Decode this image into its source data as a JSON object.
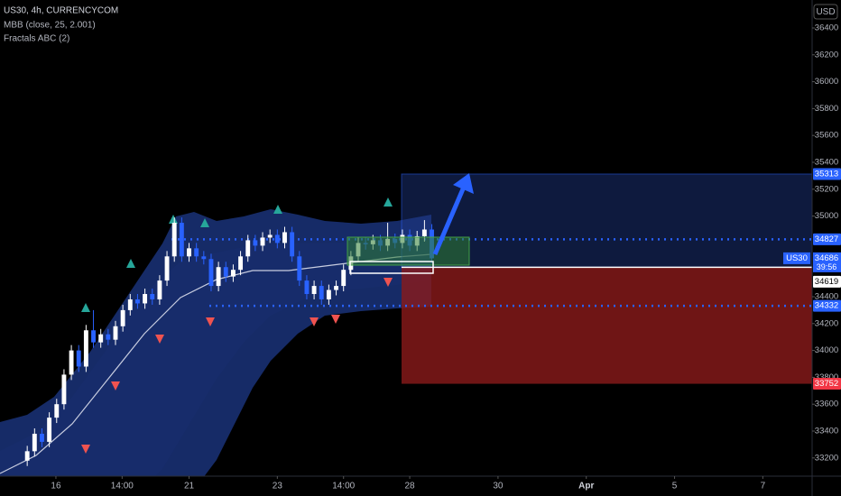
{
  "chart_data": {
    "type": "candlestick",
    "title": "US30, 4h, CURRENCYCOM",
    "indicators": [
      "MBB (close, 25, 2.001)",
      "Fractals ABC (2)"
    ],
    "currency": "USD",
    "x": [
      0,
      1,
      2,
      3,
      4,
      5,
      6,
      7,
      8,
      9,
      10,
      11,
      12,
      13,
      14,
      15,
      16,
      17,
      18,
      19,
      20,
      21,
      22,
      23,
      24,
      25,
      26,
      27,
      28,
      29,
      30,
      31,
      32,
      33,
      34,
      35,
      36,
      37,
      38,
      39,
      40,
      41,
      42,
      43,
      44,
      45,
      46,
      47,
      48,
      49,
      50,
      51,
      52,
      53,
      54,
      55
    ],
    "open": [
      33180,
      33250,
      33380,
      33320,
      33500,
      33600,
      33820,
      34000,
      33880,
      34150,
      34060,
      34120,
      34080,
      34180,
      34300,
      34380,
      34350,
      34420,
      34380,
      34520,
      34700,
      34950,
      34700,
      34760,
      34700,
      34680,
      34480,
      34620,
      34550,
      34600,
      34700,
      34820,
      34780,
      34840,
      34860,
      34800,
      34880,
      34700,
      34520,
      34420,
      34480,
      34380,
      34450,
      34480,
      34600,
      34700,
      34800,
      34790,
      34820,
      34780,
      34830,
      34800,
      34860,
      34780,
      34850,
      34900
    ],
    "high": [
      33290,
      33420,
      33420,
      33540,
      33640,
      33860,
      34040,
      34040,
      34190,
      34300,
      34160,
      34160,
      34220,
      34340,
      34420,
      34420,
      34460,
      34460,
      34560,
      34740,
      34990,
      34990,
      34800,
      34800,
      34740,
      34720,
      34660,
      34660,
      34640,
      34740,
      34860,
      34860,
      34880,
      34900,
      34900,
      34920,
      34920,
      34740,
      34560,
      34520,
      34520,
      34490,
      34520,
      34640,
      34740,
      34840,
      34840,
      34860,
      34860,
      34950,
      34870,
      34900,
      34900,
      34890,
      34970,
      34940
    ],
    "low": [
      33140,
      33210,
      33280,
      33280,
      33460,
      33560,
      33780,
      33840,
      33840,
      34020,
      34020,
      34040,
      34040,
      34140,
      34260,
      34310,
      34310,
      34340,
      34340,
      34480,
      34660,
      34660,
      34660,
      34660,
      34640,
      34440,
      34440,
      34510,
      34510,
      34560,
      34660,
      34740,
      34740,
      34800,
      34760,
      34760,
      34660,
      34480,
      34380,
      34380,
      34340,
      34340,
      34410,
      34440,
      34560,
      34660,
      34750,
      34750,
      34740,
      34740,
      34760,
      34760,
      34740,
      34740,
      34810,
      34646
    ],
    "close": [
      33250,
      33380,
      33320,
      33500,
      33600,
      33820,
      34000,
      33880,
      34150,
      34060,
      34120,
      34080,
      34180,
      34300,
      34380,
      34350,
      34420,
      34380,
      34520,
      34700,
      34950,
      34700,
      34760,
      34700,
      34680,
      34480,
      34620,
      34550,
      34600,
      34700,
      34820,
      34780,
      34840,
      34860,
      34800,
      34880,
      34700,
      34520,
      34420,
      34480,
      34380,
      34450,
      34480,
      34600,
      34700,
      34800,
      34790,
      34820,
      34780,
      34830,
      34800,
      34860,
      34780,
      34850,
      34900,
      34686
    ],
    "up_color": "#ffffff",
    "down_color": "#2962ff",
    "xlim": [
      -3.7,
      106.7
    ],
    "xticks": [
      {
        "value": 3.9,
        "label": "16"
      },
      {
        "value": 12.9,
        "label": "14:00"
      },
      {
        "value": 22,
        "label": "21"
      },
      {
        "value": 34,
        "label": "23"
      },
      {
        "value": 43,
        "label": "14:00"
      },
      {
        "value": 52,
        "label": "28"
      },
      {
        "value": 64,
        "label": "30"
      },
      {
        "value": 76,
        "label": "Apr"
      },
      {
        "value": 88,
        "label": "5"
      },
      {
        "value": 100,
        "label": "7"
      }
    ],
    "ylim": [
      33051,
      36608
    ],
    "yticks": [
      33200,
      33400,
      33600,
      33800,
      34000,
      34200,
      34400,
      35000,
      35200,
      35400,
      35600,
      35800,
      36000,
      36200,
      36400
    ],
    "position": {
      "target": 35313,
      "entry": 34619,
      "stop": 33752
    },
    "dotted_levels": [
      34827,
      34332
    ],
    "last_price": {
      "value": 34686,
      "symbol": "US30",
      "countdown": "39:56"
    }
  }
}
